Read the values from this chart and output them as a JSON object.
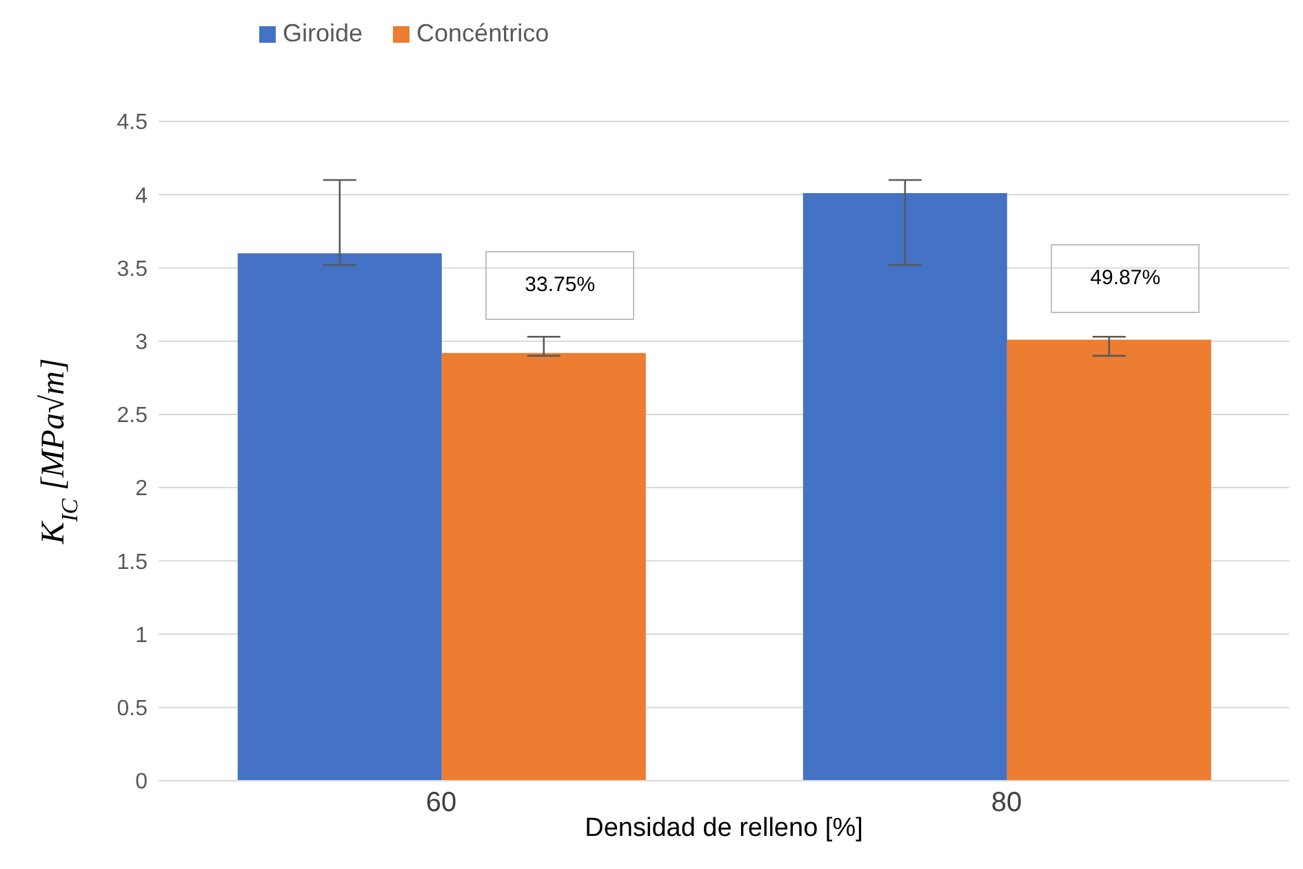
{
  "chart_data": {
    "type": "bar",
    "xlabel": "Densidad de relleno [%]",
    "ylabel": "K$_{IC}$ [MPa√m]",
    "categories": [
      "60",
      "80"
    ],
    "series": [
      {
        "name": "Giroide",
        "color": "#4472c4",
        "values": [
          3.6,
          4.01
        ],
        "errors": [
          [
            3.52,
            4.1
          ],
          [
            3.52,
            4.1
          ]
        ]
      },
      {
        "name": "Concéntrico",
        "color": "#ed7d31",
        "values": [
          2.92,
          3.01
        ],
        "errors": [
          [
            2.9,
            3.03
          ],
          [
            2.9,
            3.03
          ]
        ]
      }
    ],
    "ylim": [
      0,
      4.5
    ],
    "yticks": [
      0,
      0.5,
      1,
      1.5,
      2,
      2.5,
      3,
      3.5,
      4,
      4.5
    ],
    "grid": "y",
    "legend": "top",
    "annotations": [
      "33.75%",
      "49.87%"
    ]
  }
}
